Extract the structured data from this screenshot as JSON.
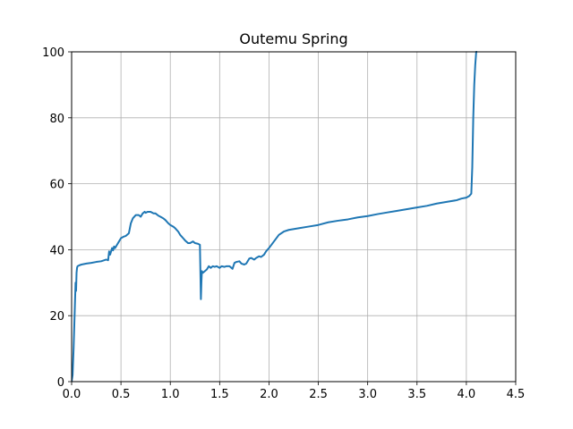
{
  "chart_data": {
    "type": "line",
    "title": "Outemu Spring",
    "xlabel": "",
    "ylabel": "",
    "xlim": [
      0,
      4.5
    ],
    "ylim": [
      0,
      100
    ],
    "grid": true,
    "legend": "none",
    "x_ticks": [
      "0.0",
      "0.5",
      "1.0",
      "1.5",
      "2.0",
      "2.5",
      "3.0",
      "3.5",
      "4.0",
      "4.5"
    ],
    "y_ticks": [
      "0",
      "20",
      "40",
      "60",
      "80",
      "100"
    ],
    "x_tick_values": [
      0.0,
      0.5,
      1.0,
      1.5,
      2.0,
      2.5,
      3.0,
      3.5,
      4.0,
      4.5
    ],
    "y_tick_values": [
      0,
      20,
      40,
      60,
      80,
      100
    ],
    "colors": {
      "series": "#1f77b4",
      "grid": "#b0b0b0",
      "axes": "#000000"
    },
    "series": [
      {
        "x": [
          0.0,
          0.01,
          0.02,
          0.03,
          0.04,
          0.045,
          0.05,
          0.055,
          0.06,
          0.08,
          0.1,
          0.15,
          0.2,
          0.25,
          0.3,
          0.35,
          0.37,
          0.38,
          0.39,
          0.41,
          0.42,
          0.43,
          0.44,
          0.46,
          0.48,
          0.5,
          0.53,
          0.55,
          0.58,
          0.6,
          0.62,
          0.65,
          0.68,
          0.7,
          0.72,
          0.74,
          0.75,
          0.77,
          0.8,
          0.83,
          0.85,
          0.88,
          0.9,
          0.93,
          0.95,
          0.98,
          1.0,
          1.03,
          1.05,
          1.08,
          1.1,
          1.13,
          1.15,
          1.18,
          1.2,
          1.23,
          1.25,
          1.28,
          1.3,
          1.31,
          1.315,
          1.32,
          1.33,
          1.35,
          1.37,
          1.39,
          1.41,
          1.43,
          1.45,
          1.47,
          1.5,
          1.52,
          1.55,
          1.57,
          1.6,
          1.63,
          1.65,
          1.67,
          1.7,
          1.72,
          1.75,
          1.77,
          1.8,
          1.82,
          1.85,
          1.87,
          1.9,
          1.92,
          1.95,
          1.97,
          2.0,
          2.05,
          2.1,
          2.15,
          2.2,
          2.3,
          2.4,
          2.5,
          2.6,
          2.7,
          2.8,
          2.9,
          3.0,
          3.1,
          3.2,
          3.3,
          3.4,
          3.5,
          3.6,
          3.7,
          3.8,
          3.9,
          3.95,
          4.0,
          4.03,
          4.05,
          4.06,
          4.07,
          4.08,
          4.09,
          4.1,
          4.11
        ],
        "y": [
          0,
          2,
          10,
          20,
          30,
          27.5,
          33,
          34.5,
          35,
          35.3,
          35.5,
          35.8,
          36.0,
          36.3,
          36.5,
          37.0,
          36.8,
          39.5,
          38.5,
          40.5,
          39.8,
          41.0,
          40.5,
          41.5,
          42.5,
          43.5,
          44.0,
          44.2,
          45.0,
          48.0,
          49.5,
          50.5,
          50.5,
          50.0,
          51.0,
          51.5,
          51.2,
          51.5,
          51.5,
          51.0,
          51.0,
          50.3,
          50.0,
          49.5,
          49.0,
          48.0,
          47.5,
          47.0,
          46.5,
          45.5,
          44.5,
          43.5,
          42.8,
          42.0,
          42.0,
          42.5,
          42.0,
          41.8,
          41.5,
          25.0,
          30.0,
          33.5,
          33.0,
          33.5,
          34.0,
          35.0,
          34.5,
          35.0,
          34.8,
          35.0,
          34.5,
          35.0,
          34.8,
          35.0,
          35.0,
          34.2,
          36.0,
          36.3,
          36.5,
          35.8,
          35.5,
          35.8,
          37.3,
          37.5,
          37.0,
          37.5,
          38.0,
          37.8,
          38.5,
          39.5,
          40.5,
          42.5,
          44.5,
          45.5,
          46.0,
          46.5,
          47.0,
          47.5,
          48.3,
          48.8,
          49.2,
          49.8,
          50.2,
          50.8,
          51.3,
          51.8,
          52.3,
          52.8,
          53.3,
          54.0,
          54.5,
          55.0,
          55.5,
          55.8,
          56.3,
          57.0,
          65.0,
          80.0,
          90.0,
          96.0,
          100.0,
          100.0
        ]
      }
    ]
  }
}
